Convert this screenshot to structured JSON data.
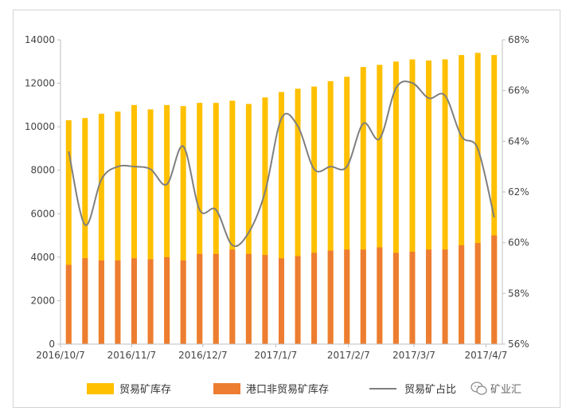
{
  "chart_data": {
    "type": "bar",
    "x_tick_labels": [
      "2016/10/7",
      "2016/11/7",
      "2016/12/7",
      "2017/1/7",
      "2017/2/7",
      "2017/3/7",
      "2017/4/7"
    ],
    "y_left": {
      "min": 0,
      "max": 14000,
      "step": 2000,
      "ticks": [
        "0",
        "2000",
        "4000",
        "6000",
        "8000",
        "10000",
        "12000",
        "14000"
      ]
    },
    "y_right": {
      "min": 56,
      "max": 68,
      "step": 2,
      "ticks": [
        "56%",
        "58%",
        "60%",
        "62%",
        "64%",
        "66%",
        "68%"
      ]
    },
    "grid": false,
    "legend_position": "bottom",
    "series": [
      {
        "name": "贸易矿库存",
        "kind": "stacked-bar-top",
        "color": "#FFC000",
        "values": [
          10300,
          10400,
          10600,
          10700,
          11000,
          10800,
          11000,
          10950,
          11100,
          11100,
          11200,
          11050,
          11350,
          11600,
          11750,
          11850,
          12100,
          12300,
          12750,
          12850,
          13000,
          13100,
          13050,
          13100,
          13300,
          13400,
          13300
        ]
      },
      {
        "name": "港口非贸易矿库存",
        "kind": "stacked-bar-bottom",
        "color": "#ED7D31",
        "values": [
          3650,
          3950,
          3850,
          3850,
          3950,
          3900,
          4000,
          3850,
          4150,
          4150,
          4350,
          4150,
          4100,
          3950,
          4050,
          4200,
          4300,
          4350,
          4350,
          4450,
          4200,
          4250,
          4350,
          4350,
          4550,
          4650,
          5000
        ]
      },
      {
        "name": "贸易矿占比",
        "kind": "line-right-axis",
        "color": "#7F7F7F",
        "values": [
          63.6,
          60.7,
          62.5,
          63.0,
          63.0,
          62.9,
          62.3,
          63.8,
          61.3,
          61.3,
          59.9,
          60.4,
          62.0,
          64.9,
          64.6,
          62.9,
          63.0,
          63.0,
          64.7,
          64.1,
          66.1,
          66.3,
          65.7,
          65.8,
          64.2,
          63.7,
          61.0
        ]
      }
    ]
  },
  "watermark": "矿业汇",
  "icons": {
    "watermark_icon": "wechat-icon"
  }
}
